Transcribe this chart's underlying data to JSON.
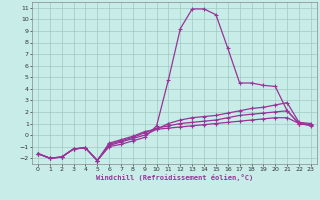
{
  "xlabel": "Windchill (Refroidissement éolien,°C)",
  "xlim": [
    -0.5,
    23.5
  ],
  "ylim": [
    -2.5,
    11.5
  ],
  "xticks": [
    0,
    1,
    2,
    3,
    4,
    5,
    6,
    7,
    8,
    9,
    10,
    11,
    12,
    13,
    14,
    15,
    16,
    17,
    18,
    19,
    20,
    21,
    22,
    23
  ],
  "yticks": [
    -2,
    -1,
    0,
    1,
    2,
    3,
    4,
    5,
    6,
    7,
    8,
    9,
    10,
    11
  ],
  "bg_color": "#c8ede8",
  "grid_color": "#a0c8c0",
  "line_color": "#993399",
  "line1_x": [
    0,
    1,
    2,
    3,
    4,
    5,
    6,
    7,
    8,
    9,
    10,
    11,
    12,
    13,
    14,
    15,
    16,
    17,
    18,
    19,
    20,
    21,
    22,
    23
  ],
  "line1_y": [
    -1.6,
    -2.0,
    -1.9,
    -1.2,
    -1.1,
    -2.2,
    -1.0,
    -0.8,
    -0.5,
    -0.2,
    0.8,
    4.8,
    9.2,
    10.9,
    10.9,
    10.4,
    7.5,
    4.5,
    4.5,
    4.3,
    4.2,
    2.1,
    1.0,
    0.9
  ],
  "line2_x": [
    0,
    1,
    2,
    3,
    4,
    5,
    6,
    7,
    8,
    9,
    10,
    11,
    12,
    13,
    14,
    15,
    16,
    17,
    18,
    19,
    20,
    21,
    22,
    23
  ],
  "line2_y": [
    -1.6,
    -2.0,
    -1.9,
    -1.2,
    -1.1,
    -2.2,
    -0.9,
    -0.6,
    -0.3,
    0.0,
    0.5,
    1.0,
    1.3,
    1.5,
    1.6,
    1.7,
    1.9,
    2.1,
    2.3,
    2.4,
    2.6,
    2.8,
    1.1,
    1.0
  ],
  "line3_x": [
    0,
    1,
    2,
    3,
    4,
    5,
    6,
    7,
    8,
    9,
    10,
    11,
    12,
    13,
    14,
    15,
    16,
    17,
    18,
    19,
    20,
    21,
    22,
    23
  ],
  "line3_y": [
    -1.6,
    -2.0,
    -1.9,
    -1.2,
    -1.1,
    -2.2,
    -0.8,
    -0.5,
    -0.2,
    0.2,
    0.6,
    0.8,
    1.0,
    1.1,
    1.2,
    1.3,
    1.5,
    1.7,
    1.8,
    1.9,
    2.0,
    2.1,
    1.0,
    0.9
  ],
  "line4_x": [
    0,
    1,
    2,
    3,
    4,
    5,
    6,
    7,
    8,
    9,
    10,
    11,
    12,
    13,
    14,
    15,
    16,
    17,
    18,
    19,
    20,
    21,
    22,
    23
  ],
  "line4_y": [
    -1.6,
    -2.0,
    -1.9,
    -1.2,
    -1.1,
    -2.2,
    -0.7,
    -0.4,
    -0.1,
    0.3,
    0.5,
    0.6,
    0.7,
    0.8,
    0.9,
    1.0,
    1.1,
    1.2,
    1.3,
    1.4,
    1.5,
    1.5,
    1.0,
    0.8
  ]
}
